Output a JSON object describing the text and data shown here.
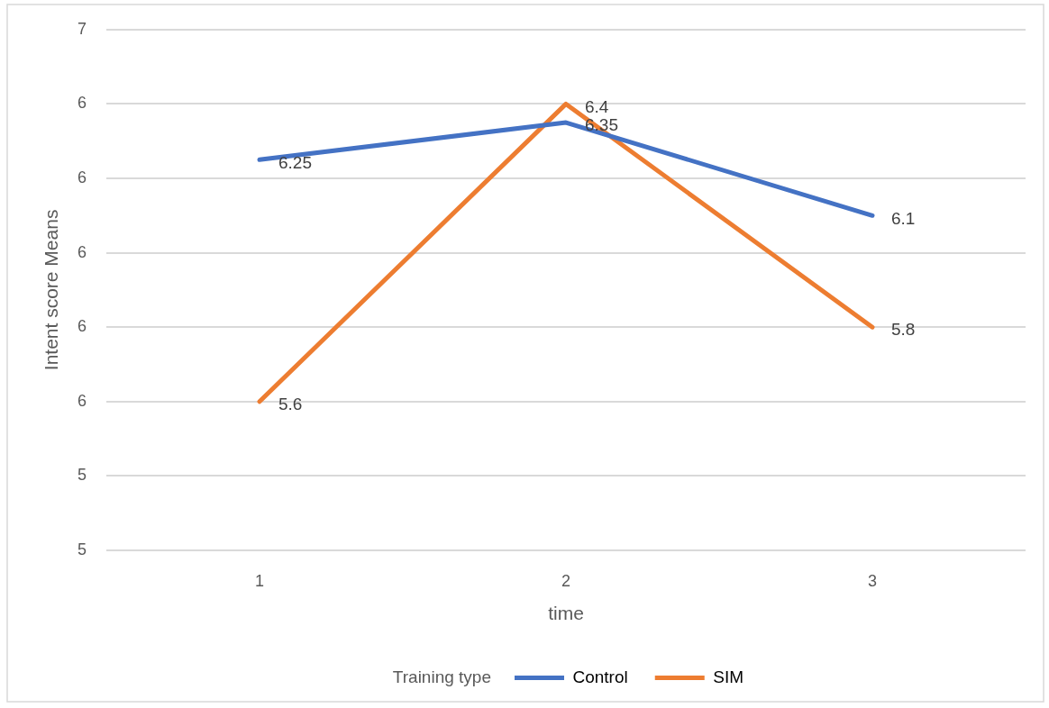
{
  "chart_data": {
    "type": "line",
    "xlabel": "time",
    "ylabel": "Intent score Means",
    "legend_title": "Training type",
    "categories": [
      "1",
      "2",
      "3"
    ],
    "series": [
      {
        "name": "Control",
        "color": "#4472c4",
        "values": [
          6.25,
          6.35,
          6.1
        ]
      },
      {
        "name": "SIM",
        "color": "#ed7d31",
        "values": [
          5.6,
          6.4,
          5.8
        ]
      }
    ],
    "ylim": [
      5.2,
      6.6
    ],
    "yticks": [
      {
        "value": 5.2,
        "label": "5"
      },
      {
        "value": 5.4,
        "label": "5"
      },
      {
        "value": 5.6,
        "label": "6"
      },
      {
        "value": 5.8,
        "label": "6"
      },
      {
        "value": 6.0,
        "label": "6"
      },
      {
        "value": 6.2,
        "label": "6"
      },
      {
        "value": 6.4,
        "label": "6"
      },
      {
        "value": 6.6,
        "label": "7"
      }
    ],
    "grid": "y",
    "legend": "bottom",
    "marker": "none",
    "line_style": "solid",
    "data_labels": true
  }
}
